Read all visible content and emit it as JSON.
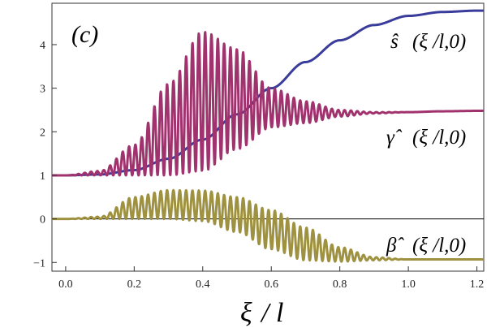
{
  "chart_data": {
    "type": "line",
    "panel_label": "(c)",
    "xlabel": "ξ / l",
    "xlim": [
      -0.04,
      1.22
    ],
    "ylim": [
      -1.2,
      4.95
    ],
    "xticks": [
      0.0,
      0.2,
      0.4,
      0.6,
      0.8,
      1.0,
      1.2
    ],
    "xtick_labels": [
      "0.0",
      "0.2",
      "0.4",
      "0.6",
      "0.8",
      "1.0",
      "1.2"
    ],
    "yticks": [
      -1,
      0,
      1,
      2,
      3,
      4
    ],
    "ytick_labels": [
      "−1",
      "0",
      "1",
      "2",
      "3",
      "4"
    ],
    "grid": false,
    "series": [
      {
        "name": "ŝ (ξ / l,0)",
        "color": "#3a3c9c",
        "x": [
          -0.04,
          0.0,
          0.1,
          0.2,
          0.3,
          0.4,
          0.5,
          0.6,
          0.7,
          0.8,
          0.9,
          1.0,
          1.1,
          1.2
        ],
        "values": [
          1.0,
          1.0,
          1.02,
          1.12,
          1.38,
          1.82,
          2.4,
          3.0,
          3.6,
          4.1,
          4.45,
          4.66,
          4.75,
          4.78
        ]
      },
      {
        "name": "γ̂ (ξ / l,0)",
        "color": "#a0326e",
        "x": [
          -0.04,
          0.0,
          0.1,
          0.2,
          0.3,
          0.4,
          0.5,
          0.6,
          0.7,
          0.8,
          0.9,
          1.0,
          1.1,
          1.2
        ],
        "values": [
          1.0,
          1.0,
          1.02,
          1.15,
          1.45,
          1.85,
          2.15,
          2.33,
          2.4,
          2.42,
          2.43,
          2.45,
          2.47,
          2.48
        ],
        "oscillation_upper": [
          1.0,
          1.0,
          1.1,
          1.7,
          3.1,
          4.3,
          3.9,
          3.0,
          2.7,
          2.5,
          2.45,
          2.45,
          2.47,
          2.48
        ],
        "oscillation_lower": [
          1.0,
          1.0,
          1.0,
          1.0,
          1.0,
          1.1,
          1.6,
          2.1,
          2.2,
          2.35,
          2.42,
          2.45,
          2.47,
          2.48
        ]
      },
      {
        "name": "β̂ (ξ / l,0)",
        "color": "#9e9140",
        "x": [
          -0.04,
          0.0,
          0.1,
          0.2,
          0.3,
          0.4,
          0.5,
          0.6,
          0.7,
          0.8,
          0.9,
          1.0,
          1.1,
          1.2
        ],
        "values": [
          0.0,
          0.0,
          0.02,
          0.22,
          0.32,
          0.3,
          0.1,
          -0.25,
          -0.58,
          -0.8,
          -0.9,
          -0.93,
          -0.93,
          -0.93
        ],
        "oscillation_upper": [
          0.0,
          0.0,
          0.05,
          0.5,
          0.66,
          0.65,
          0.5,
          0.2,
          -0.2,
          -0.65,
          -0.88,
          -0.93,
          -0.93,
          -0.93
        ],
        "oscillation_lower": [
          0.0,
          0.0,
          0.0,
          0.0,
          0.0,
          -0.05,
          -0.3,
          -0.7,
          -0.95,
          -0.98,
          -0.95,
          -0.93,
          -0.93,
          -0.93
        ]
      }
    ]
  }
}
